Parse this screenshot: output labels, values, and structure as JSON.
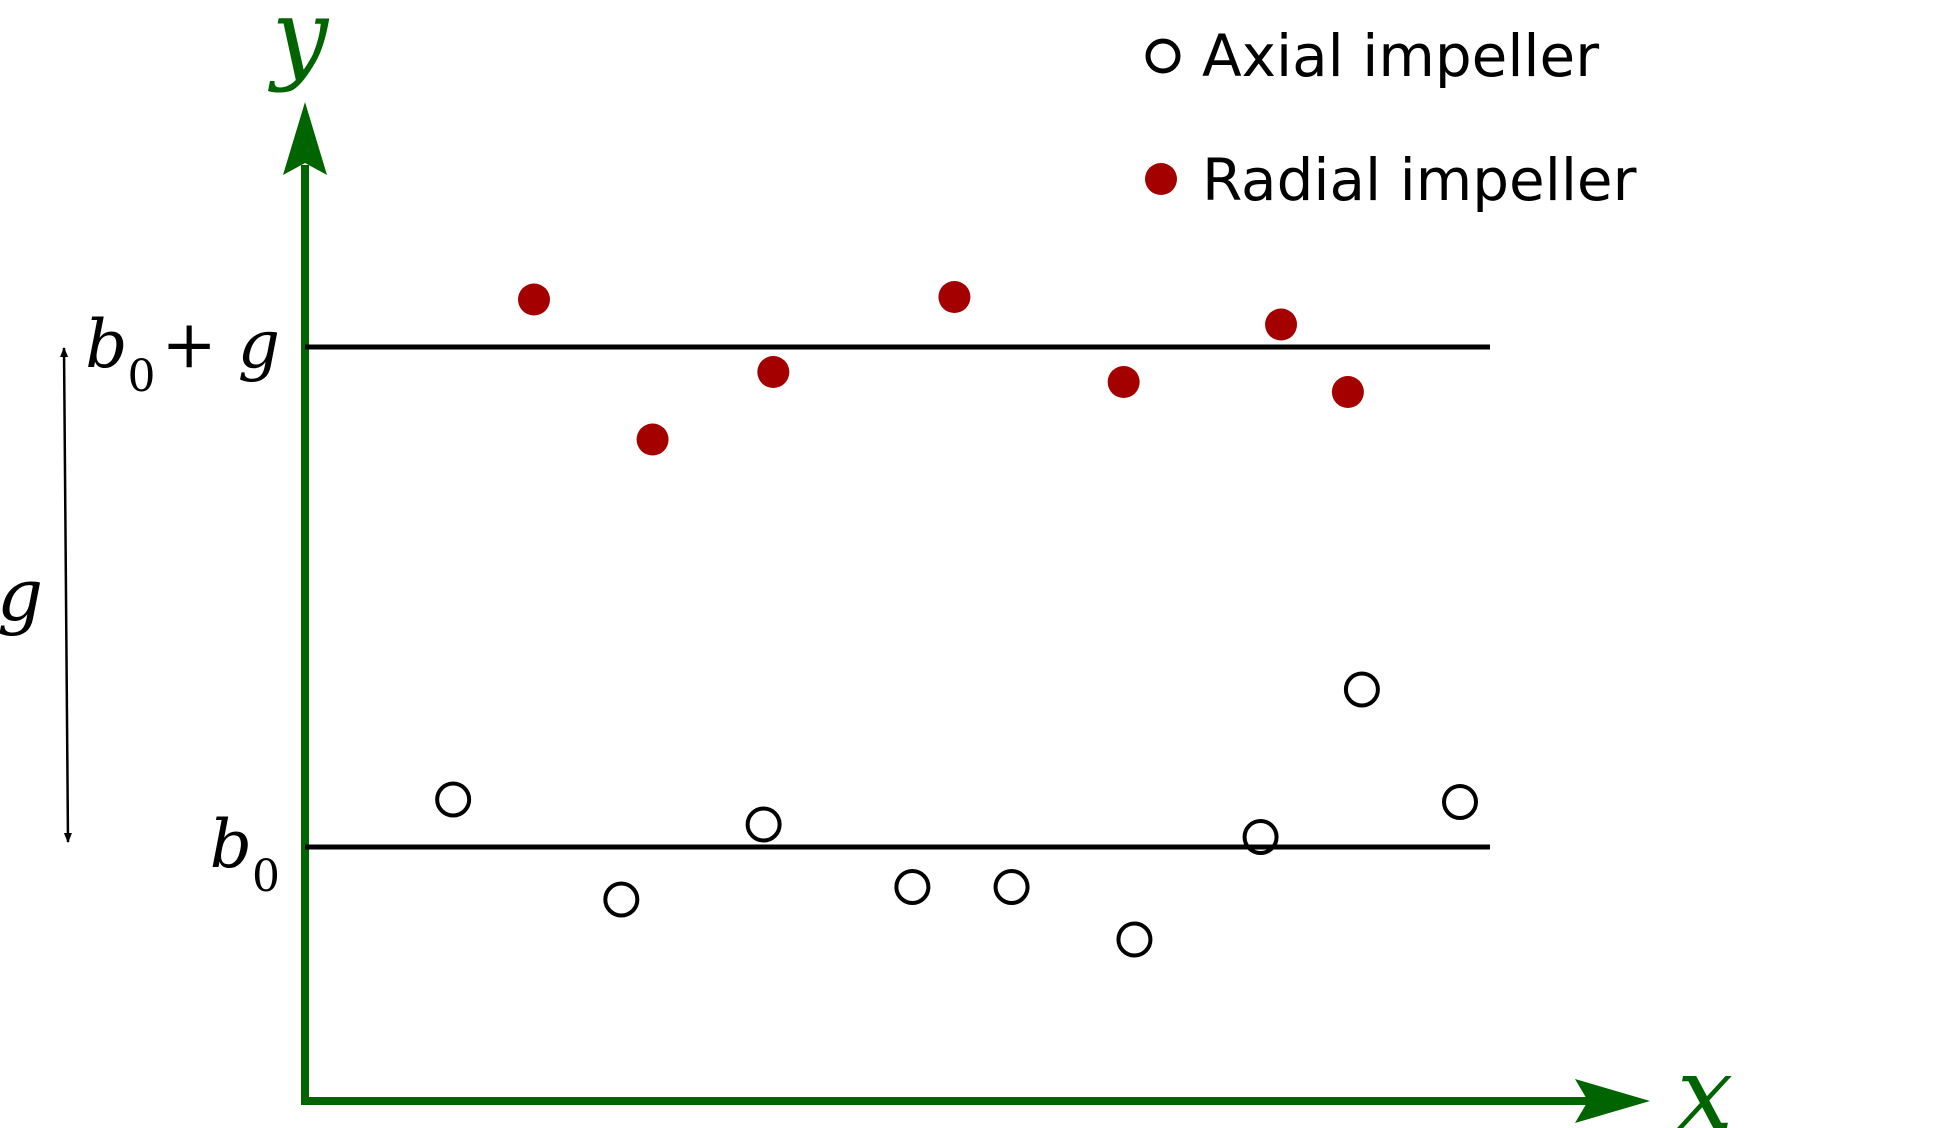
{
  "chart_data": {
    "type": "scatter",
    "x_axis_label": "x",
    "y_axis_label": "y",
    "xlim": [
      0,
      1
    ],
    "ylim": [
      0,
      2
    ],
    "grid": false,
    "legend_position": "top-right",
    "reference_lines": [
      {
        "y": 0.45,
        "label": {
          "base": "b",
          "sub": "0",
          "suffix": ""
        }
      },
      {
        "y": 1.45,
        "label": {
          "base": "b",
          "sub": "0",
          "suffix": "+ g"
        }
      }
    ],
    "gap_annotation": {
      "label": "g",
      "from": 0.45,
      "to": 1.45
    },
    "series": [
      {
        "name": "Axial impeller",
        "marker": "open-circle",
        "color": "#000000",
        "x": [
          0.066,
          0.222,
          0.354,
          0.492,
          0.584,
          0.698,
          0.815,
          0.909,
          1.0
        ],
        "y": [
          0.545,
          0.345,
          0.495,
          0.37,
          0.37,
          0.265,
          0.47,
          0.765,
          0.54
        ]
      },
      {
        "name": "Radial impeller",
        "marker": "filled-circle",
        "color": "#a50000",
        "x": [
          0.141,
          0.251,
          0.363,
          0.531,
          0.688,
          0.834,
          0.896
        ],
        "y": [
          1.545,
          1.265,
          1.4,
          1.55,
          1.38,
          1.495,
          1.36
        ]
      }
    ]
  },
  "colors": {
    "axis": "#006400",
    "reference_line": "#000000",
    "axial_marker": "#000000",
    "radial_marker": "#a50000"
  }
}
